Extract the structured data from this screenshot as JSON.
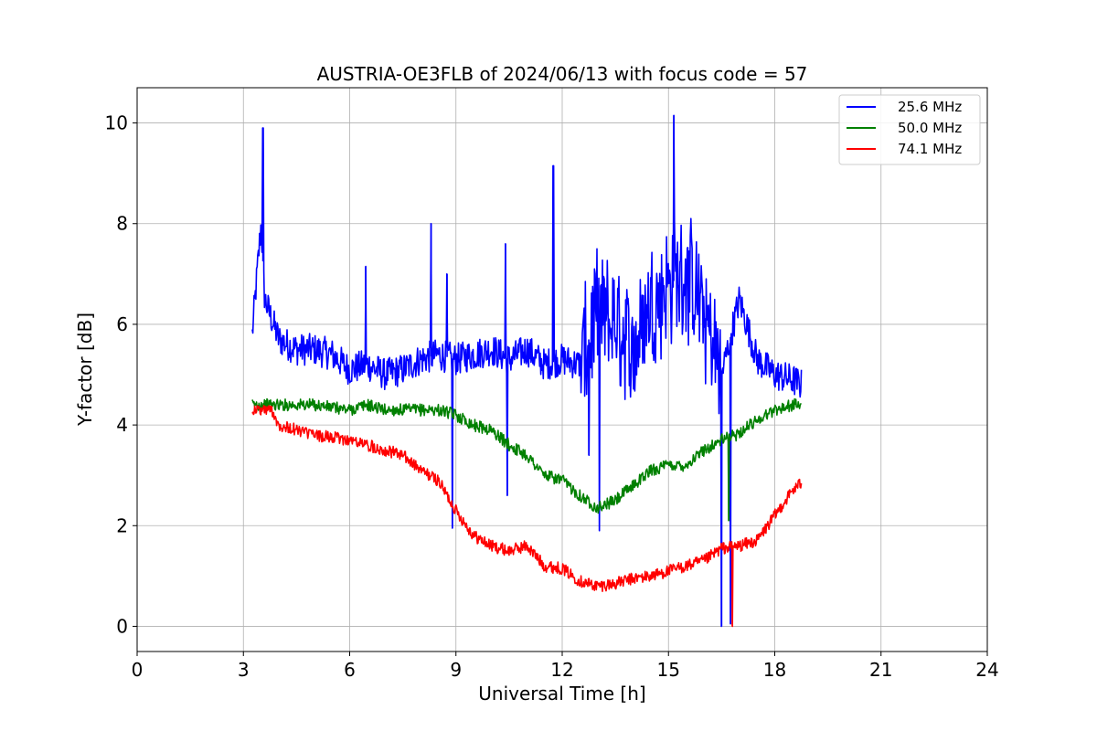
{
  "chart_data": {
    "type": "line",
    "title": "AUSTRIA-OE3FLB of 2024/06/13 with focus code = 57",
    "xlabel": "Universal Time [h]",
    "ylabel": "Y-factor [dB]",
    "xlim": [
      0,
      24
    ],
    "ylim": [
      -0.5,
      10.7
    ],
    "xticks": [
      0,
      3,
      6,
      9,
      12,
      15,
      18,
      21,
      24
    ],
    "yticks": [
      0,
      2,
      4,
      6,
      8,
      10
    ],
    "grid": true,
    "legend_position": "top-right",
    "series": [
      {
        "name": "25.6 MHz",
        "color": "#0000ff",
        "x": [
          3.25,
          3.5,
          3.6,
          4.0,
          4.5,
          5.0,
          5.5,
          6.0,
          6.5,
          7.0,
          7.5,
          8.0,
          8.5,
          9.0,
          9.5,
          10.0,
          10.5,
          11.0,
          11.5,
          12.0,
          12.5,
          13.0,
          13.5,
          14.0,
          14.5,
          15.0,
          15.5,
          16.0,
          16.5,
          17.0,
          17.5,
          18.0,
          18.5,
          18.75
        ],
        "y": [
          5.8,
          8.0,
          6.5,
          5.7,
          5.5,
          5.5,
          5.4,
          5.1,
          5.2,
          5.0,
          5.1,
          5.3,
          5.4,
          5.3,
          5.4,
          5.5,
          5.3,
          5.5,
          5.2,
          5.3,
          5.2,
          6.2,
          6.0,
          5.5,
          6.4,
          6.8,
          7.0,
          6.2,
          5.0,
          6.5,
          5.3,
          5.0,
          4.9,
          4.8
        ],
        "spikes": [
          {
            "x": 3.55,
            "y": 9.9
          },
          {
            "x": 6.45,
            "y": 7.15
          },
          {
            "x": 8.3,
            "y": 8.0
          },
          {
            "x": 8.75,
            "y": 7.0
          },
          {
            "x": 8.9,
            "y": 1.95
          },
          {
            "x": 10.4,
            "y": 7.6
          },
          {
            "x": 10.45,
            "y": 2.6
          },
          {
            "x": 11.75,
            "y": 9.15
          },
          {
            "x": 12.75,
            "y": 3.4
          },
          {
            "x": 13.05,
            "y": 1.9
          },
          {
            "x": 15.15,
            "y": 10.15
          },
          {
            "x": 16.5,
            "y": 0.0
          },
          {
            "x": 16.75,
            "y": 0.05
          }
        ]
      },
      {
        "name": "50.0 MHz",
        "color": "#008000",
        "x": [
          3.25,
          4.0,
          5.0,
          6.0,
          6.5,
          7.0,
          8.0,
          8.5,
          9.0,
          9.5,
          10.0,
          10.5,
          11.0,
          11.5,
          12.0,
          12.5,
          13.0,
          13.5,
          14.0,
          14.5,
          15.0,
          15.5,
          16.0,
          16.5,
          16.9,
          17.5,
          18.0,
          18.5,
          18.75
        ],
        "y": [
          4.4,
          4.4,
          4.4,
          4.3,
          4.4,
          4.3,
          4.3,
          4.3,
          4.2,
          4.0,
          3.9,
          3.6,
          3.4,
          3.0,
          2.9,
          2.6,
          2.35,
          2.5,
          2.8,
          3.1,
          3.2,
          3.2,
          3.5,
          3.7,
          3.8,
          4.1,
          4.3,
          4.4,
          4.4
        ],
        "spikes": [
          {
            "x": 16.7,
            "y": 2.1
          }
        ]
      },
      {
        "name": "74.1 MHz",
        "color": "#ff0000",
        "x": [
          3.25,
          3.8,
          4.0,
          5.0,
          6.0,
          7.0,
          7.5,
          8.0,
          8.5,
          9.0,
          9.5,
          10.0,
          10.5,
          11.0,
          11.5,
          12.0,
          12.5,
          13.0,
          13.5,
          14.0,
          14.5,
          15.0,
          15.5,
          16.0,
          16.5,
          17.0,
          17.5,
          18.0,
          18.5,
          18.75
        ],
        "y": [
          4.3,
          4.3,
          4.0,
          3.8,
          3.7,
          3.5,
          3.4,
          3.1,
          2.9,
          2.3,
          1.8,
          1.6,
          1.5,
          1.6,
          1.2,
          1.15,
          0.9,
          0.8,
          0.85,
          0.95,
          1.0,
          1.1,
          1.2,
          1.3,
          1.55,
          1.6,
          1.7,
          2.2,
          2.7,
          2.85
        ],
        "spikes": [
          {
            "x": 16.8,
            "y": 0.0
          }
        ]
      }
    ]
  }
}
